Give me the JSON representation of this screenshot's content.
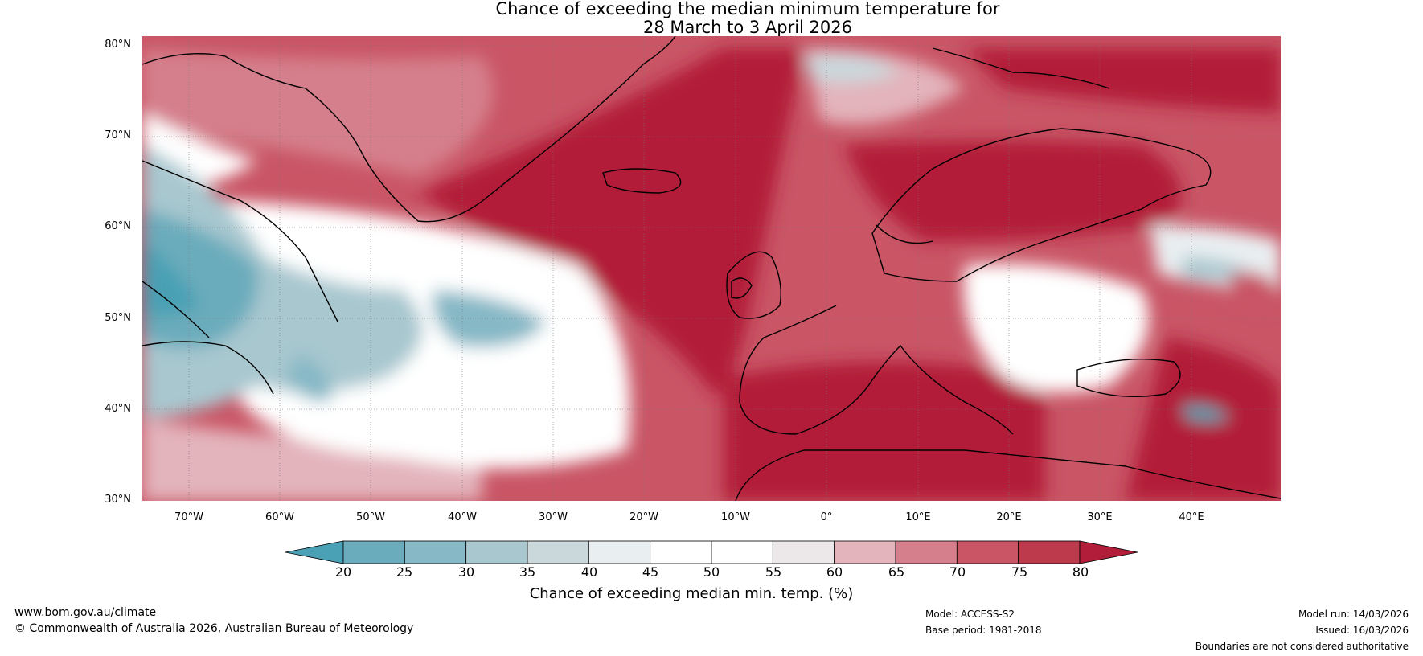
{
  "title": {
    "line1": "Chance of exceeding the median minimum temperature for",
    "line2": "28 March to 3 April 2026"
  },
  "latitudes": [
    "80°N",
    "70°N",
    "60°N",
    "50°N",
    "40°N",
    "30°N"
  ],
  "longitudes": [
    "70°W",
    "60°W",
    "50°W",
    "40°W",
    "30°W",
    "20°W",
    "10°W",
    "0°",
    "10°E",
    "20°E",
    "30°E",
    "40°E"
  ],
  "colorbar": {
    "ticks": [
      "20",
      "25",
      "30",
      "35",
      "40",
      "45",
      "50",
      "55",
      "60",
      "65",
      "70",
      "75",
      "80"
    ],
    "colors": [
      "#4aa0b4",
      "#6aacbc",
      "#86b8c6",
      "#a8c7cf",
      "#cad8dc",
      "#e9eff1",
      "#ffffff",
      "#ffffff",
      "#ece8ea",
      "#e3b4bb",
      "#d57f8c",
      "#c95565",
      "#bd3a4c",
      "#b21e39"
    ],
    "label": "Chance of exceeding median min. temp. (%)"
  },
  "footer": {
    "website": "www.bom.gov.au/climate",
    "copyright": "© Commonwealth of Australia 2026, Australian Bureau of Meteorology",
    "model": "Model: ACCESS-S2",
    "base_period": "Base period: 1981-2018",
    "model_run": "Model run: 14/03/2026",
    "issued": "Issued: 16/03/2026",
    "disclaimer": "Boundaries are not considered authoritative"
  }
}
